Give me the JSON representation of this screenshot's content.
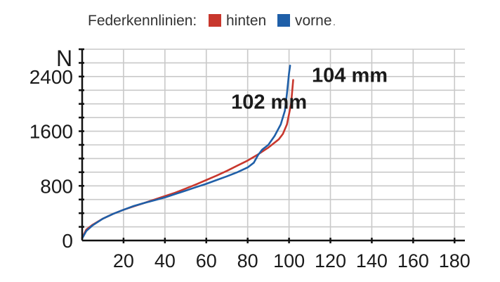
{
  "chart_data": {
    "type": "line",
    "title": "Federkennlinien:",
    "legend": {
      "placement": "top-left",
      "entries": [
        {
          "name": "hinten",
          "color": "#c8372d"
        },
        {
          "name": "vorne",
          "color": "#1f5fa8"
        }
      ],
      "trailing_dot": "."
    },
    "ylabel": "N",
    "xlabel": "",
    "ylim": [
      0,
      2800
    ],
    "xlim": [
      0,
      185
    ],
    "grid": true,
    "x_ticks": [
      20,
      40,
      60,
      80,
      100,
      120,
      140,
      160,
      180
    ],
    "x_tick_labels": [
      "20",
      "40",
      "60",
      "80",
      "100",
      "120",
      "140",
      "160",
      "180"
    ],
    "y_ticks": [
      800,
      1600,
      2400
    ],
    "y_tick_labels": [
      "800",
      "1600",
      "2400"
    ],
    "y_origin_label": "0",
    "series": [
      {
        "name": "hinten",
        "color": "#c8372d",
        "points": [
          [
            0,
            40
          ],
          [
            2,
            160
          ],
          [
            5,
            230
          ],
          [
            10,
            320
          ],
          [
            15,
            390
          ],
          [
            20,
            450
          ],
          [
            25,
            500
          ],
          [
            30,
            550
          ],
          [
            35,
            600
          ],
          [
            40,
            650
          ],
          [
            45,
            700
          ],
          [
            50,
            760
          ],
          [
            55,
            820
          ],
          [
            60,
            885
          ],
          [
            65,
            950
          ],
          [
            70,
            1020
          ],
          [
            75,
            1095
          ],
          [
            80,
            1170
          ],
          [
            85,
            1260
          ],
          [
            90,
            1360
          ],
          [
            95,
            1480
          ],
          [
            97,
            1560
          ],
          [
            99,
            1700
          ],
          [
            100,
            1850
          ],
          [
            101,
            2000
          ],
          [
            102,
            2350
          ]
        ]
      },
      {
        "name": "vorne",
        "color": "#1f5fa8",
        "points": [
          [
            0,
            30
          ],
          [
            2,
            140
          ],
          [
            5,
            220
          ],
          [
            10,
            320
          ],
          [
            15,
            390
          ],
          [
            20,
            450
          ],
          [
            25,
            505
          ],
          [
            30,
            550
          ],
          [
            35,
            590
          ],
          [
            40,
            630
          ],
          [
            45,
            680
          ],
          [
            50,
            730
          ],
          [
            55,
            780
          ],
          [
            60,
            830
          ],
          [
            65,
            885
          ],
          [
            70,
            940
          ],
          [
            75,
            1000
          ],
          [
            80,
            1070
          ],
          [
            83,
            1140
          ],
          [
            85,
            1250
          ],
          [
            87,
            1330
          ],
          [
            90,
            1400
          ],
          [
            93,
            1530
          ],
          [
            96,
            1700
          ],
          [
            98,
            1900
          ],
          [
            99,
            2150
          ],
          [
            100,
            2450
          ],
          [
            100.5,
            2560
          ]
        ]
      }
    ],
    "annotations": [
      {
        "text": "102 mm",
        "x": 72,
        "y": 1930
      },
      {
        "text": "104 mm",
        "x": 111,
        "y": 2320
      }
    ]
  }
}
